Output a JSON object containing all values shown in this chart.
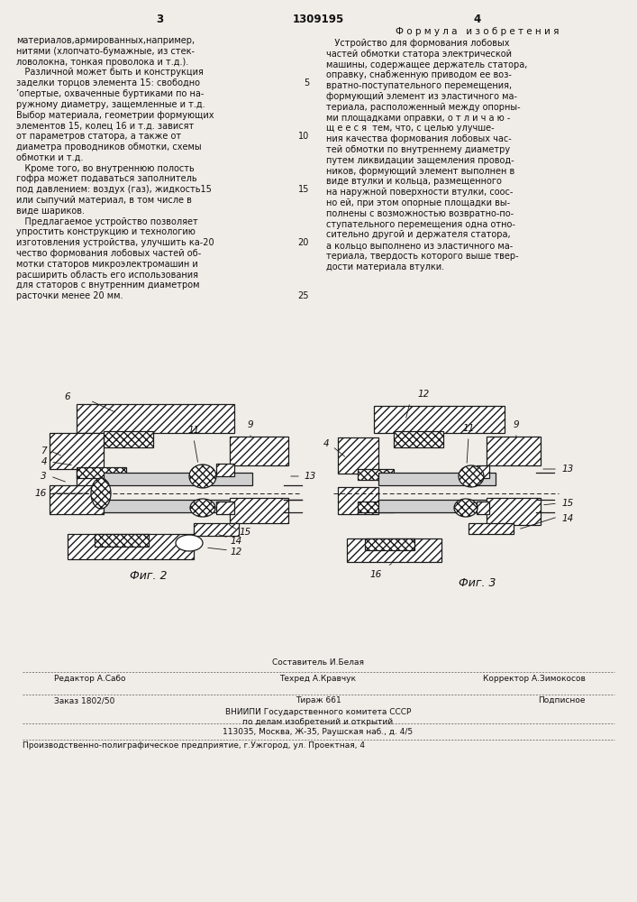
{
  "page_color": "#f0ede8",
  "header_num_left": "3",
  "header_patent": "1309195",
  "header_num_right": "4",
  "formula_header": "Ф о р м у л а   и з о б р е т е н и я",
  "left_text_lines": [
    "материалов,армированных,например,",
    "нитями (хлопчато-бумажные, из стек-",
    "ловолокна, тонкая проволока и т.д.).",
    "   Различной может быть и конструкция",
    "заделки торцов элемента 15: свободно",
    "’опертые, охваченные буртиками по на-",
    "ружному диаметру, защемленные и т.д.",
    "Выбор материала, геометрии формующих",
    "элементов 15, колец 16 и т.д. зависят",
    "от параметров статора, а также от",
    "диаметра проводников обмотки, схемы",
    "обмотки и т.д.",
    "   Кроме того, во внутреннюю полость",
    "гофра может подаваться заполнитель",
    "под давлением: воздух (газ), жидкость15",
    "или сыпучий материал, в том числе в",
    "виде шариков.",
    "   Предлагаемое устройство позволяет",
    "упростить конструкцию и технологию",
    "изготовления устройства, улучшить ка-20",
    "чество формования лобовых частей об-",
    "мотки статоров микроэлектромашин и",
    "расширить область его использования",
    "для статоров с внутренним диаметром",
    "расточки менее 20 мм."
  ],
  "right_text_lines": [
    "   Устройство для формования лобовых",
    "частей обмотки статора электрической",
    "машины, содержащее держатель статора,",
    "оправку, снабженную приводом ее воз-",
    "вратно-поступательного перемещения,",
    "формующий элемент из эластичного ма-",
    "териала, расположенный между опорны-",
    "ми площадками оправки, о т л и ч а ю -",
    "щ е е с я  тем, что, с целью улучше-",
    "ния качества формования лобовых час-",
    "тей обмотки по внутреннему диаметру",
    "путем ликвидации защемления провод-",
    "ников, формующий элемент выполнен в",
    "виде втулки и кольца, размещенного",
    "на наружной поверхности втулки, соос-",
    "но ей, при этом опорные площадки вы-",
    "полнены с возможностью возвратно-по-",
    "ступательного перемещения одна отно-",
    "сительно другой и держателя статора,",
    "а кольцо выполнено из эластичного ма-",
    "териала, твердость которого выше твер-",
    "дости материала втулки."
  ],
  "line_num_5": "5",
  "line_num_10": "10",
  "line_num_15": "15",
  "line_num_20": "20",
  "fig2_caption": "Фиг. 2",
  "fig3_caption": "Фиг. 3",
  "footer_sestavitel": "Составитель И.Белая",
  "footer_redaktor": "Редактор А.Сабо",
  "footer_tekhred": "Техред А.Кравчук",
  "footer_korrektor": "Корректор А.Зимокосов",
  "footer_zakaz": "Заказ 1802/50",
  "footer_tirazh": "Тираж 661",
  "footer_podpisnoe": "Подписное",
  "footer_vniipи": "ВНИИПИ Государственного комитета СССР",
  "footer_po_delam": "по делам изобретений и открытий",
  "footer_address": "113035, Москва, Ж-35, Раушская наб., д. 4/5",
  "footer_predpriyatie": "Производственно-полиграфическое предприятие, г.Ужгород, ул. Проектная, 4",
  "text_color": "#111111",
  "hatch_color": "#1a1a1a",
  "bg_color": "#f0ede8"
}
